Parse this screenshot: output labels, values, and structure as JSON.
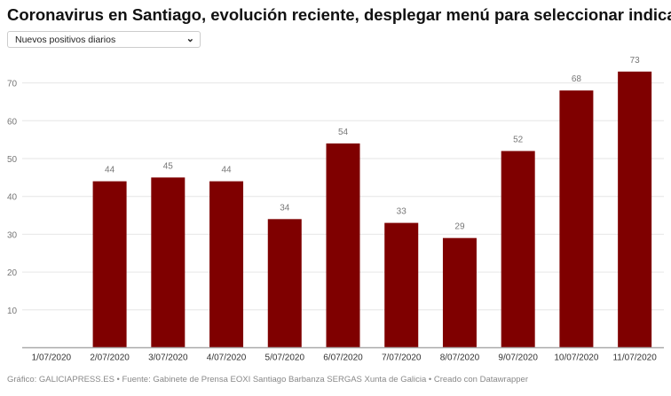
{
  "title": "Coronavirus en Santiago, evolución reciente, desplegar menú para seleccionar indicador",
  "dropdown": {
    "selected": "Nuevos positivos diarios"
  },
  "footer": "Gráfico: GALICIAPRESS.ES • Fuente: Gabinete de Prensa EOXI Santiago Barbanza SERGAS Xunta de Galicia • Creado con Datawrapper",
  "chart_data": {
    "type": "bar",
    "categories": [
      "1/07/2020",
      "2/07/2020",
      "3/07/2020",
      "4/07/2020",
      "5/07/2020",
      "6/07/2020",
      "7/07/2020",
      "8/07/2020",
      "9/07/2020",
      "10/07/2020",
      "11/07/2020"
    ],
    "values": [
      null,
      44,
      45,
      44,
      34,
      54,
      33,
      29,
      52,
      68,
      73
    ],
    "yticks": [
      10,
      20,
      30,
      40,
      50,
      60,
      70
    ],
    "ylim": [
      0,
      75
    ],
    "grid": true,
    "bar_color": "#7f0000"
  }
}
